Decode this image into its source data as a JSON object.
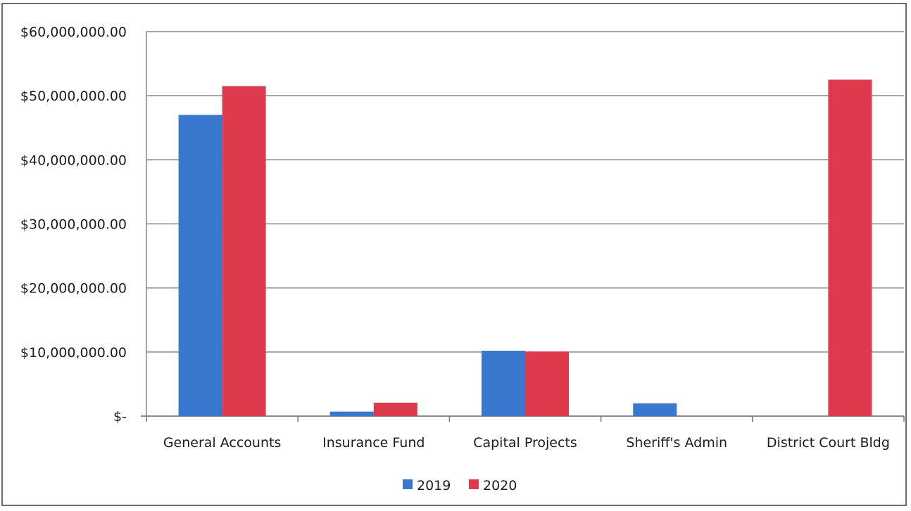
{
  "chart_data": {
    "type": "bar",
    "title": "",
    "xlabel": "",
    "ylabel": "",
    "categories": [
      "General Accounts",
      "Insurance Fund",
      "Capital Projects",
      "Sheriff's Admin",
      "District Court Bldg"
    ],
    "series": [
      {
        "name": "2019",
        "color": "#3a78d0",
        "values": [
          47000000,
          700000,
          10200000,
          2000000,
          0
        ]
      },
      {
        "name": "2020",
        "color": "#dd3a4d",
        "values": [
          51500000,
          2100000,
          10100000,
          0,
          52500000
        ]
      }
    ],
    "ylim": [
      0,
      60000000
    ],
    "yticks": [
      0,
      10000000,
      20000000,
      30000000,
      40000000,
      50000000,
      60000000
    ],
    "ytick_labels": [
      "$-",
      "$10,000,000.00",
      "$20,000,000.00",
      "$30,000,000.00",
      "$40,000,000.00",
      "$50,000,000.00",
      "$60,000,000.00"
    ],
    "grid": true,
    "legend_position": "bottom-center"
  }
}
